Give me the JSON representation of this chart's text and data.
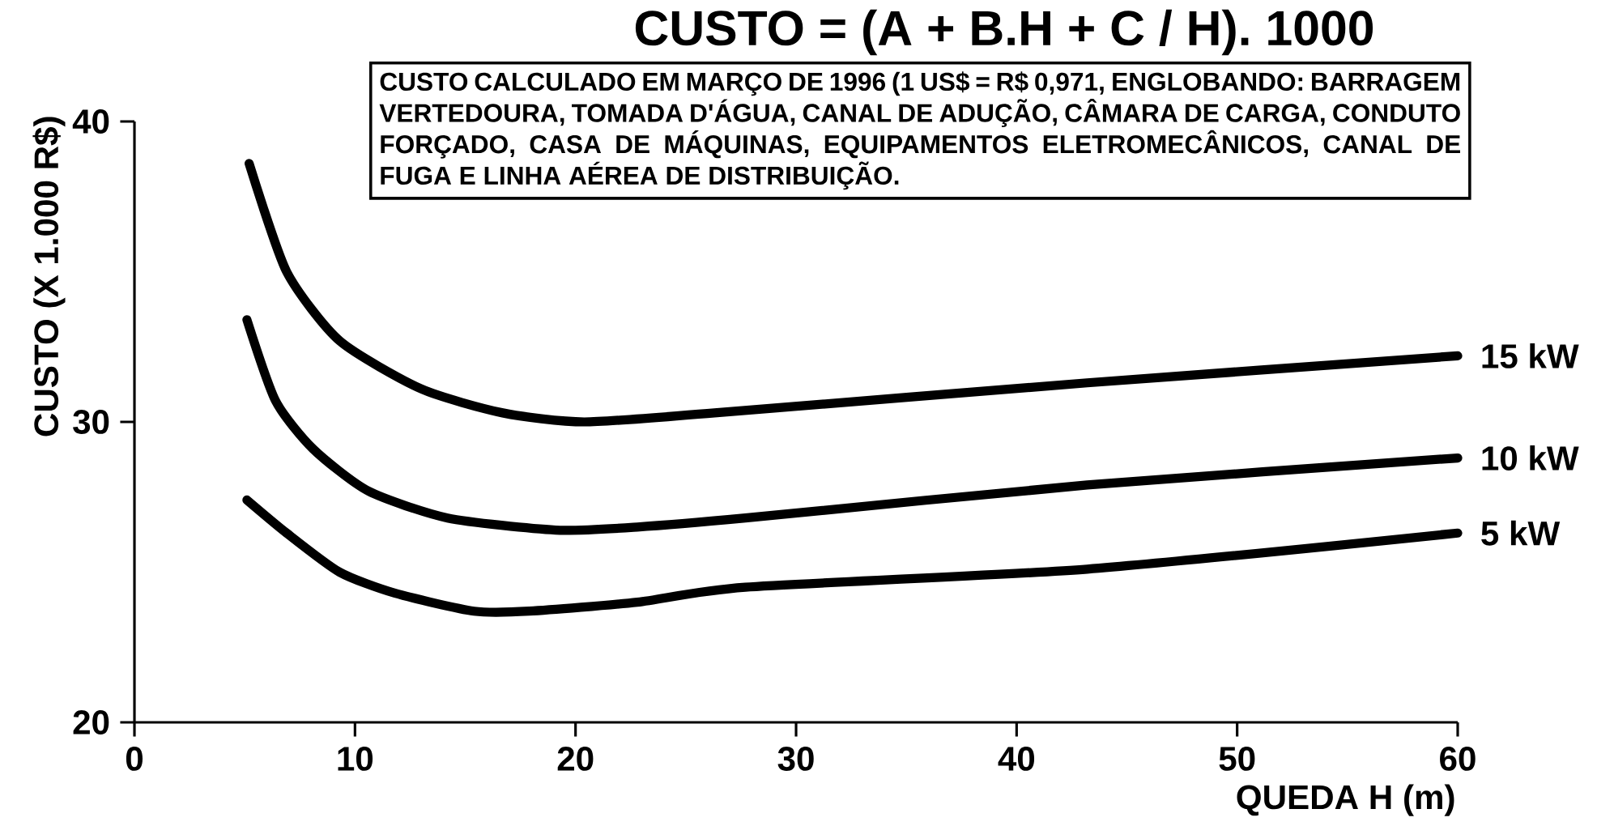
{
  "chart_data": {
    "type": "line",
    "title": "CUSTO = (A + B.H + C / H). 1000",
    "xlabel": "QUEDA H (m)",
    "ylabel": "CUSTO (X 1.000 R$)",
    "annotations": [
      "CUSTO CALCULADO EM MARÇO DE 1996 (1 US$ = R$ 0,971, ENGLOBANDO: BARRAGEM VERTEDOURA, TOMADA D'ÁGUA, CANAL DE ADUÇÃO, CÂMARA DE CARGA, CONDUTO FORÇADO, CASA DE MÁQUINAS, EQUIPAMENTOS ELETROMECÂNICOS, CANAL DE FUGA E LINHA AÉREA DE DISTRIBUIÇÃO."
    ],
    "xlim": [
      0,
      60
    ],
    "ylim": [
      20,
      40
    ],
    "xticks": [
      0,
      10,
      20,
      30,
      40,
      50,
      60
    ],
    "yticks": [
      20,
      30,
      40
    ],
    "grid": false,
    "legend": false,
    "marker": "none",
    "line_style": "solid",
    "series": [
      {
        "name": "15 kW",
        "color": "#000000",
        "x": [
          5.2,
          6.9,
          9.3,
          13.0,
          16.7,
          20.4,
          26.3,
          43.2,
          60
        ],
        "values": [
          38.6,
          35.0,
          32.7,
          31.1,
          30.3,
          30.0,
          30.3,
          31.3,
          32.2
        ]
      },
      {
        "name": "10 kW",
        "color": "#000000",
        "x": [
          5.1,
          6.4,
          8.1,
          10.6,
          14.2,
          19.1,
          22.8,
          27.7,
          43.2,
          60
        ],
        "values": [
          33.4,
          30.7,
          29.1,
          27.7,
          26.8,
          26.4,
          26.5,
          26.8,
          27.9,
          28.8
        ]
      },
      {
        "name": "5 kW",
        "color": "#000000",
        "x": [
          5.1,
          6.9,
          9.3,
          11.8,
          15.4,
          17.9,
          22.8,
          27.7,
          43.2,
          60
        ],
        "values": [
          27.4,
          26.3,
          25.0,
          24.3,
          23.7,
          23.7,
          24.0,
          24.5,
          25.1,
          26.3
        ]
      }
    ]
  }
}
